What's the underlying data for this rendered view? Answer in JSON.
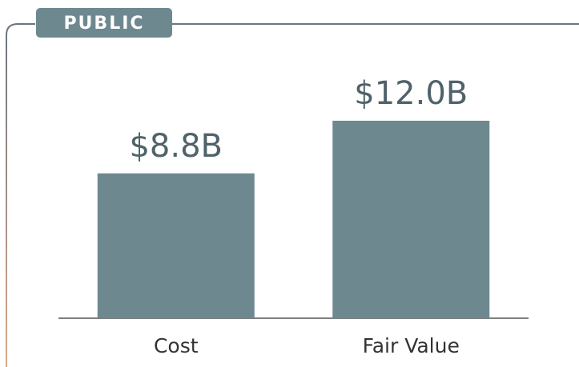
{
  "chart_data": {
    "type": "bar",
    "title": "PUBLIC",
    "categories": [
      "Cost",
      "Fair Value"
    ],
    "values": [
      8.8,
      12.0
    ],
    "value_labels": [
      "$8.8B",
      "$12.0B"
    ],
    "color": "#6e8890"
  }
}
